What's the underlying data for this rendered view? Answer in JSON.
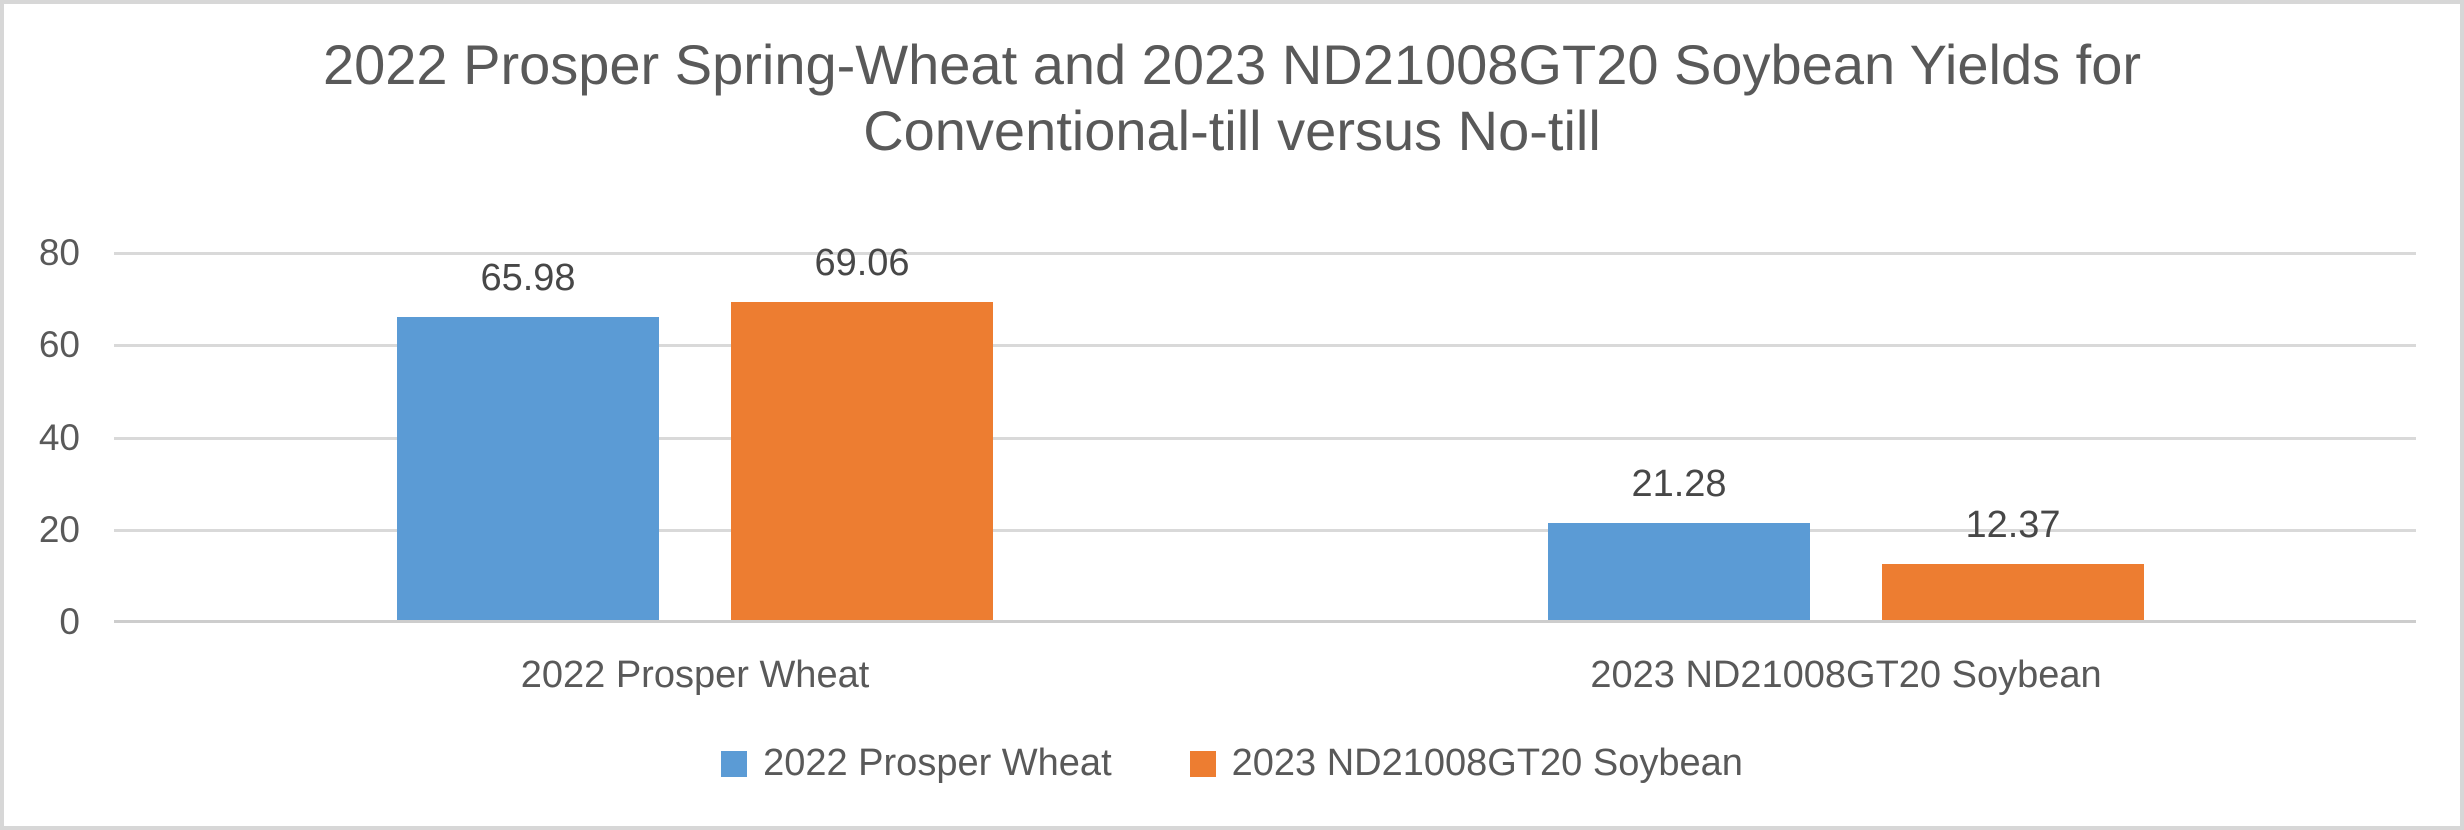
{
  "chart_data": {
    "type": "bar",
    "title": "2022 Prosper Spring-Wheat and 2023 ND21008GT20 Soybean Yields for Conventional-till versus No-till",
    "title_lines": [
      "2022 Prosper Spring-Wheat and 2023 ND21008GT20 Soybean Yields for",
      "Conventional-till versus No-till"
    ],
    "categories": [
      "2022 Prosper Wheat",
      "2023 ND21008GT20 Soybean"
    ],
    "series": [
      {
        "name": "2022 Prosper Wheat",
        "color": "#5B9BD5",
        "values": [
          65.98,
          21.28
        ]
      },
      {
        "name": "2023 ND21008GT20 Soybean",
        "color": "#ED7D31",
        "values": [
          69.06,
          12.37
        ]
      }
    ],
    "data_labels": [
      [
        "65.98",
        "21.28"
      ],
      [
        "69.06",
        "12.37"
      ]
    ],
    "y_ticks": [
      0,
      20,
      40,
      60,
      80
    ],
    "ylim": [
      0,
      80
    ],
    "xlabel": "",
    "ylabel": "",
    "grid": true,
    "legend_position": "bottom",
    "colors": {
      "series1": "#5B9BD5",
      "series2": "#ED7D31",
      "text": "#595959",
      "data_label_text": "#474747",
      "gridline": "#D9D9D9",
      "axis_line": "#CDCDCD",
      "border": "#D7D7D7",
      "background": "#FFFFFF"
    }
  }
}
